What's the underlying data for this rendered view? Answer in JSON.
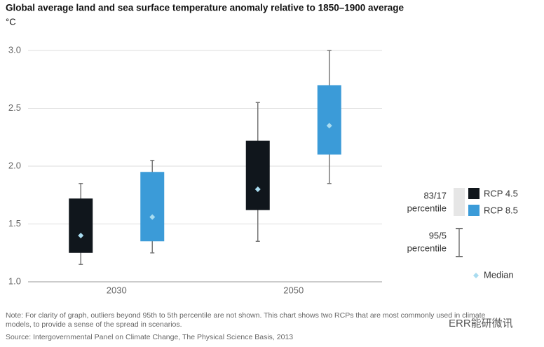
{
  "chart_data": {
    "type": "box",
    "title": "Global average land and sea surface temperature anomaly relative to 1850–1900 average",
    "y_label": "°C",
    "categories": [
      "2030",
      "2050"
    ],
    "ylim": [
      1.0,
      3.0
    ],
    "yticks": [
      {
        "value": 1.0,
        "label": "1.0"
      },
      {
        "value": 1.5,
        "label": "1.5"
      },
      {
        "value": 2.0,
        "label": "2.0"
      },
      {
        "value": 2.5,
        "label": "2.5"
      },
      {
        "value": 3.0,
        "label": "3.0"
      }
    ],
    "grid": true,
    "whisker_color": "#777777",
    "median_color": "#a9dcf0",
    "series": [
      {
        "name": "RCP 4.5",
        "color": "#10161c",
        "low": [
          1.15,
          1.35
        ],
        "q1": [
          1.25,
          1.62
        ],
        "median": [
          1.4,
          1.8
        ],
        "q3": [
          1.72,
          2.22
        ],
        "high": [
          1.85,
          2.55
        ]
      },
      {
        "name": "RCP 8.5",
        "color": "#3b9bd8",
        "low": [
          1.25,
          1.85
        ],
        "q1": [
          1.35,
          2.1
        ],
        "median": [
          1.56,
          2.35
        ],
        "q3": [
          1.95,
          2.7
        ],
        "high": [
          2.05,
          3.0
        ]
      }
    ],
    "legend": {
      "box_label": [
        "83/17",
        "percentile"
      ],
      "box_color": "#e6e6e6",
      "whisker_label": [
        "95/5",
        "percentile"
      ],
      "median_label": "Median"
    },
    "note": [
      "Note: For clarity of graph, outliers beyond 95th to 5th percentile are not shown. This chart shows two RCPs that are most commonly used in climate",
      "models, to provide a sense of the spread in scenarios."
    ],
    "source": "Source: Intergovernmental Panel on Climate Change, The Physical Science Basis, 2013",
    "watermark": "ERR能研微讯"
  }
}
